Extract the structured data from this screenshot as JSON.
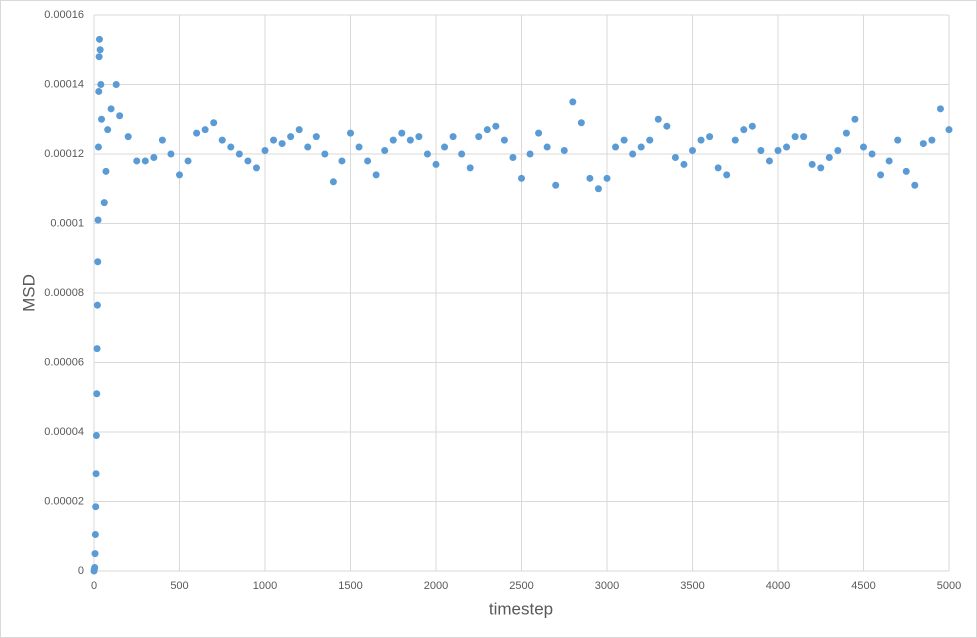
{
  "chart_data": {
    "type": "scatter",
    "x_label": "timestep",
    "y_label": "MSD",
    "xlim": [
      0,
      5000
    ],
    "xticks": [
      0,
      500,
      1000,
      1500,
      2000,
      2500,
      3000,
      3500,
      4000,
      4500,
      5000
    ],
    "ylim": [
      0,
      0.00016
    ],
    "yticks": [
      0,
      2e-05,
      4e-05,
      6e-05,
      8e-05,
      0.0001,
      0.00012,
      0.00014,
      0.00016
    ],
    "grid": true,
    "color": "#5b9bd5",
    "x": [
      0,
      2,
      4,
      6,
      8,
      10,
      12,
      14,
      16,
      18,
      20,
      22,
      24,
      26,
      28,
      30,
      32,
      36,
      40,
      44,
      60,
      70,
      80,
      100,
      130,
      150,
      200,
      250,
      300,
      350,
      400,
      450,
      500,
      550,
      600,
      650,
      700,
      750,
      800,
      850,
      900,
      950,
      1000,
      1050,
      1100,
      1150,
      1200,
      1250,
      1300,
      1350,
      1400,
      1450,
      1500,
      1550,
      1600,
      1650,
      1700,
      1750,
      1800,
      1850,
      1900,
      1950,
      2000,
      2050,
      2100,
      2150,
      2200,
      2250,
      2300,
      2350,
      2400,
      2450,
      2500,
      2550,
      2600,
      2650,
      2700,
      2750,
      2800,
      2850,
      2900,
      2950,
      3000,
      3050,
      3100,
      3150,
      3200,
      3250,
      3300,
      3350,
      3400,
      3450,
      3500,
      3550,
      3600,
      3650,
      3700,
      3750,
      3800,
      3850,
      3900,
      3950,
      4000,
      4050,
      4100,
      4150,
      4200,
      4250,
      4300,
      4350,
      4400,
      4450,
      4500,
      4550,
      4600,
      4650,
      4700,
      4750,
      4800,
      4850,
      4900,
      4950,
      5000
    ],
    "values": [
      0,
      5e-07,
      1e-06,
      5e-06,
      1.05e-05,
      1.85e-05,
      2.8e-05,
      3.9e-05,
      5.1e-05,
      6.4e-05,
      7.65e-05,
      8.9e-05,
      0.000101,
      0.000122,
      0.000138,
      0.000148,
      0.000153,
      0.00015,
      0.00014,
      0.00013,
      0.000106,
      0.000115,
      0.000127,
      0.000133,
      0.00014,
      0.000131,
      0.000125,
      0.000118,
      0.000118,
      0.000119,
      0.000124,
      0.00012,
      0.000114,
      0.000118,
      0.000126,
      0.000127,
      0.000129,
      0.000124,
      0.000122,
      0.00012,
      0.000118,
      0.000116,
      0.000121,
      0.000124,
      0.000123,
      0.000125,
      0.000127,
      0.000122,
      0.000125,
      0.00012,
      0.000112,
      0.000118,
      0.000126,
      0.000122,
      0.000118,
      0.000114,
      0.000121,
      0.000124,
      0.000126,
      0.000124,
      0.000125,
      0.00012,
      0.000117,
      0.000122,
      0.000125,
      0.00012,
      0.000116,
      0.000125,
      0.000127,
      0.000128,
      0.000124,
      0.000119,
      0.000113,
      0.00012,
      0.000126,
      0.000122,
      0.000111,
      0.000121,
      0.000135,
      0.000129,
      0.000113,
      0.00011,
      0.000113,
      0.000122,
      0.000124,
      0.00012,
      0.000122,
      0.000124,
      0.00013,
      0.000128,
      0.000119,
      0.000117,
      0.000121,
      0.000124,
      0.000125,
      0.000116,
      0.000114,
      0.000124,
      0.000127,
      0.000128,
      0.000121,
      0.000118,
      0.000121,
      0.000122,
      0.000125,
      0.000125,
      0.000117,
      0.000116,
      0.000119,
      0.000121,
      0.000126,
      0.00013,
      0.000122,
      0.00012,
      0.000114,
      0.000118,
      0.000124,
      0.000115,
      0.000111,
      0.000123,
      0.000124,
      0.000133,
      0.000127
    ]
  }
}
